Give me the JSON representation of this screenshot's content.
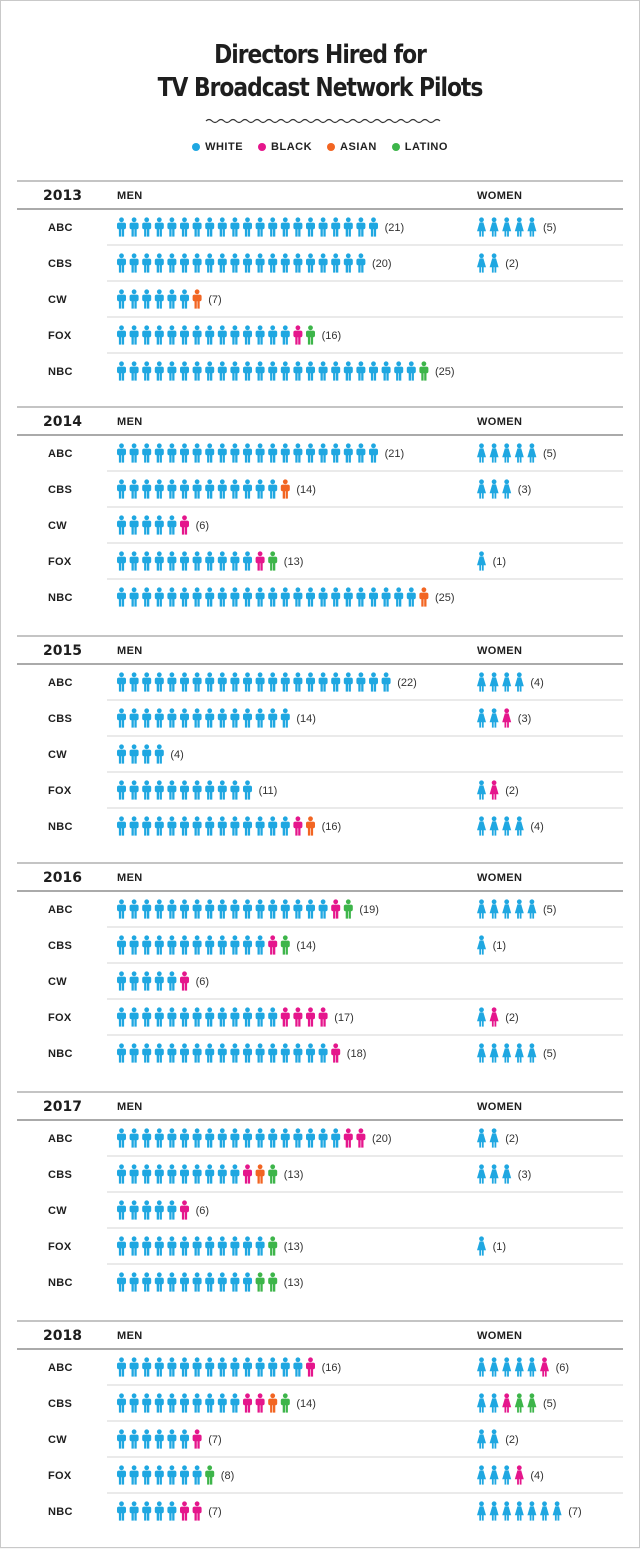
{
  "title_line1": "Directors Hired for",
  "title_line2": "TV Broadcast Network Pilots",
  "legend": [
    {
      "label": "WHITE",
      "color": "#1fa7e1"
    },
    {
      "label": "BLACK",
      "color": "#e5168c"
    },
    {
      "label": "ASIAN",
      "color": "#f26522"
    },
    {
      "label": "LATINO",
      "color": "#3db54a"
    }
  ],
  "men_header": "MEN",
  "women_header": "WOMEN",
  "chart_data": {
    "type": "table",
    "categories": [
      "WHITE",
      "BLACK",
      "ASIAN",
      "LATINO"
    ],
    "years": [
      {
        "year": "2013",
        "networks": [
          {
            "name": "ABC",
            "men": [
              21,
              0,
              0,
              0
            ],
            "men_total": 21,
            "women": [
              5,
              0,
              0,
              0
            ],
            "women_total": 5
          },
          {
            "name": "CBS",
            "men": [
              20,
              0,
              0,
              0
            ],
            "men_total": 20,
            "women": [
              2,
              0,
              0,
              0
            ],
            "women_total": 2
          },
          {
            "name": "CW",
            "men": [
              6,
              0,
              1,
              0
            ],
            "men_total": 7,
            "women": [
              0,
              0,
              0,
              0
            ],
            "women_total": 0
          },
          {
            "name": "FOX",
            "men": [
              14,
              1,
              0,
              1
            ],
            "men_total": 16,
            "women": [
              0,
              0,
              0,
              0
            ],
            "women_total": 0
          },
          {
            "name": "NBC",
            "men": [
              24,
              0,
              0,
              1
            ],
            "men_total": 25,
            "women": [
              0,
              0,
              0,
              0
            ],
            "women_total": 0
          }
        ]
      },
      {
        "year": "2014",
        "networks": [
          {
            "name": "ABC",
            "men": [
              21,
              0,
              0,
              0
            ],
            "men_total": 21,
            "women": [
              5,
              0,
              0,
              0
            ],
            "women_total": 5
          },
          {
            "name": "CBS",
            "men": [
              13,
              0,
              1,
              0
            ],
            "men_total": 14,
            "women": [
              3,
              0,
              0,
              0
            ],
            "women_total": 3
          },
          {
            "name": "CW",
            "men": [
              5,
              1,
              0,
              0
            ],
            "men_total": 6,
            "women": [
              0,
              0,
              0,
              0
            ],
            "women_total": 0
          },
          {
            "name": "FOX",
            "men": [
              11,
              1,
              0,
              1
            ],
            "men_total": 13,
            "women": [
              1,
              0,
              0,
              0
            ],
            "women_total": 1
          },
          {
            "name": "NBC",
            "men": [
              24,
              0,
              1,
              0
            ],
            "men_total": 25,
            "women": [
              0,
              0,
              0,
              0
            ],
            "women_total": 0
          }
        ]
      },
      {
        "year": "2015",
        "networks": [
          {
            "name": "ABC",
            "men": [
              22,
              0,
              0,
              0
            ],
            "men_total": 22,
            "women": [
              4,
              0,
              0,
              0
            ],
            "women_total": 4
          },
          {
            "name": "CBS",
            "men": [
              14,
              0,
              0,
              0
            ],
            "men_total": 14,
            "women": [
              2,
              1,
              0,
              0
            ],
            "women_total": 3
          },
          {
            "name": "CW",
            "men": [
              4,
              0,
              0,
              0
            ],
            "men_total": 4,
            "women": [
              0,
              0,
              0,
              0
            ],
            "women_total": 0
          },
          {
            "name": "FOX",
            "men": [
              11,
              0,
              0,
              0
            ],
            "men_total": 11,
            "women": [
              1,
              1,
              0,
              0
            ],
            "women_total": 2
          },
          {
            "name": "NBC",
            "men": [
              14,
              1,
              1,
              0
            ],
            "men_total": 16,
            "women": [
              4,
              0,
              0,
              0
            ],
            "women_total": 4
          }
        ]
      },
      {
        "year": "2016",
        "networks": [
          {
            "name": "ABC",
            "men": [
              17,
              1,
              0,
              1
            ],
            "men_total": 19,
            "women": [
              5,
              0,
              0,
              0
            ],
            "women_total": 5
          },
          {
            "name": "CBS",
            "men": [
              12,
              1,
              0,
              1
            ],
            "men_total": 14,
            "women": [
              1,
              0,
              0,
              0
            ],
            "women_total": 1
          },
          {
            "name": "CW",
            "men": [
              5,
              1,
              0,
              0
            ],
            "men_total": 6,
            "women": [
              0,
              0,
              0,
              0
            ],
            "women_total": 0
          },
          {
            "name": "FOX",
            "men": [
              13,
              4,
              0,
              0
            ],
            "men_total": 17,
            "women": [
              1,
              1,
              0,
              0
            ],
            "women_total": 2
          },
          {
            "name": "NBC",
            "men": [
              17,
              1,
              0,
              0
            ],
            "men_total": 18,
            "women": [
              5,
              0,
              0,
              0
            ],
            "women_total": 5
          }
        ]
      },
      {
        "year": "2017",
        "networks": [
          {
            "name": "ABC",
            "men": [
              18,
              2,
              0,
              0
            ],
            "men_total": 20,
            "women": [
              2,
              0,
              0,
              0
            ],
            "women_total": 2
          },
          {
            "name": "CBS",
            "men": [
              10,
              1,
              1,
              1
            ],
            "men_total": 13,
            "women": [
              3,
              0,
              0,
              0
            ],
            "women_total": 3
          },
          {
            "name": "CW",
            "men": [
              5,
              1,
              0,
              0
            ],
            "men_total": 6,
            "women": [
              0,
              0,
              0,
              0
            ],
            "women_total": 0
          },
          {
            "name": "FOX",
            "men": [
              12,
              0,
              0,
              1
            ],
            "men_total": 13,
            "women": [
              1,
              0,
              0,
              0
            ],
            "women_total": 1
          },
          {
            "name": "NBC",
            "men": [
              11,
              0,
              0,
              2
            ],
            "men_total": 13,
            "women": [
              0,
              0,
              0,
              0
            ],
            "women_total": 0
          }
        ]
      },
      {
        "year": "2018",
        "networks": [
          {
            "name": "ABC",
            "men": [
              15,
              1,
              0,
              0
            ],
            "men_total": 16,
            "women": [
              5,
              1,
              0,
              0
            ],
            "women_total": 6
          },
          {
            "name": "CBS",
            "men": [
              10,
              2,
              1,
              1
            ],
            "men_total": 14,
            "women": [
              2,
              1,
              0,
              2
            ],
            "women_total": 5
          },
          {
            "name": "CW",
            "men": [
              6,
              1,
              0,
              0
            ],
            "men_total": 7,
            "women": [
              2,
              0,
              0,
              0
            ],
            "women_total": 2
          },
          {
            "name": "FOX",
            "men": [
              7,
              0,
              0,
              1
            ],
            "men_total": 8,
            "women": [
              3,
              1,
              0,
              0
            ],
            "women_total": 4
          },
          {
            "name": "NBC",
            "men": [
              5,
              2,
              0,
              0
            ],
            "men_total": 7,
            "women": [
              7,
              0,
              0,
              0
            ],
            "women_total": 7
          }
        ]
      }
    ]
  }
}
